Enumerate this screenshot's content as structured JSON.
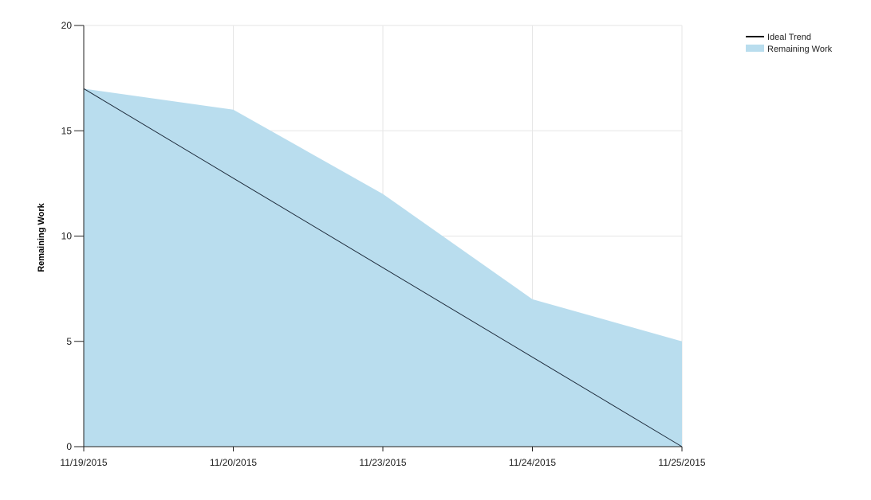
{
  "chart_data": {
    "type": "area",
    "x": [
      "11/19/2015",
      "11/20/2015",
      "11/23/2015",
      "11/24/2015",
      "11/25/2015"
    ],
    "ylabel": "Remaining Work",
    "xlabel": "",
    "ylim": [
      0,
      20
    ],
    "yticks": [
      0,
      5,
      10,
      15,
      20
    ],
    "grid": true,
    "legend_position": "top-right",
    "series": [
      {
        "name": "Ideal Trend",
        "kind": "line",
        "color": "#1f2d3d",
        "values": [
          17,
          12.75,
          8.5,
          4.25,
          0
        ]
      },
      {
        "name": "Remaining Work",
        "kind": "area",
        "color": "#b9ddee",
        "values": [
          17,
          16,
          12,
          7,
          5
        ]
      }
    ]
  }
}
